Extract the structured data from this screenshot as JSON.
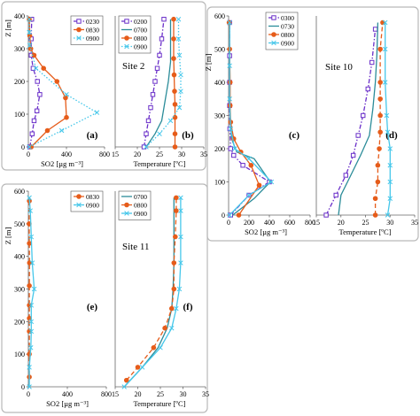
{
  "figure": {
    "site_labels": [
      "Site 2",
      "Site 10",
      "Site 11"
    ]
  },
  "series_colors": {
    "purple": "#6a2fc9",
    "orange": "#e65c1a",
    "teal": "#2b8c99",
    "cyan": "#45c7ea"
  },
  "chart_data": [
    {
      "type": "line",
      "panel_label": "(a)",
      "xlabel": "SO2 [µg m⁻³]",
      "ylabel": "Z [m]",
      "xlim": [
        0,
        800
      ],
      "xticks": [
        0,
        400,
        800
      ],
      "ylim": [
        0,
        400
      ],
      "yticks": [
        0,
        100,
        200,
        300,
        400
      ],
      "legend": "top-right",
      "series": [
        {
          "name": "0230",
          "color": "purple",
          "style": "dashdot",
          "marker": "square",
          "x": [
            15,
            40,
            60,
            90,
            120,
            95,
            50,
            30,
            30,
            35
          ],
          "y": [
            0,
            40,
            80,
            110,
            160,
            200,
            240,
            280,
            330,
            390
          ]
        },
        {
          "name": "0830",
          "color": "orange",
          "style": "solid",
          "marker": "circle",
          "x": [
            30,
            200,
            400,
            390,
            300,
            160,
            60,
            25,
            15,
            10
          ],
          "y": [
            0,
            50,
            90,
            150,
            200,
            240,
            280,
            300,
            340,
            390
          ]
        },
        {
          "name": "0900",
          "color": "cyan",
          "style": "dotted",
          "marker": "cross",
          "x": [
            10,
            350,
            720,
            400,
            80,
            15,
            10,
            8
          ],
          "y": [
            0,
            50,
            105,
            160,
            240,
            310,
            350,
            390
          ]
        }
      ]
    },
    {
      "type": "line",
      "panel_label": "(b)",
      "xlabel": "Temperature [ºC]",
      "ylabel": "",
      "xlim": [
        15,
        35
      ],
      "xticks": [
        15,
        20,
        25,
        30,
        35
      ],
      "ylim": [
        0,
        400
      ],
      "legend": "top-left",
      "series": [
        {
          "name": "0200",
          "color": "purple",
          "style": "dashdot",
          "marker": "square",
          "x": [
            21.5,
            22,
            22.5,
            23,
            23.5,
            24,
            24.5,
            25,
            25.5,
            26
          ],
          "y": [
            0,
            40,
            80,
            120,
            160,
            200,
            240,
            280,
            330,
            390
          ]
        },
        {
          "name": "0700",
          "color": "teal",
          "style": "solid",
          "marker": "none",
          "x": [
            22,
            24,
            25.5,
            26,
            26.5,
            27,
            27.5,
            27.5,
            27.5
          ],
          "y": [
            0,
            40,
            80,
            120,
            160,
            200,
            260,
            320,
            390
          ]
        },
        {
          "name": "0800",
          "color": "orange",
          "style": "solid",
          "marker": "circle",
          "x": [
            28.5,
            28.5,
            28.5,
            28.5,
            28.4,
            28.3,
            28.2,
            28.2,
            28.2
          ],
          "y": [
            0,
            40,
            90,
            130,
            170,
            220,
            270,
            330,
            390
          ]
        },
        {
          "name": "0900",
          "color": "cyan",
          "style": "dotted",
          "marker": "cross",
          "x": [
            22,
            25,
            27.5,
            29.5,
            29.8,
            29.8,
            29.5,
            29.3,
            29.3
          ],
          "y": [
            0,
            40,
            80,
            120,
            170,
            220,
            280,
            330,
            390
          ]
        }
      ]
    },
    {
      "type": "line",
      "panel_label": "(c)",
      "xlabel": "SO2 [µg m⁻³]",
      "ylabel": "Z [m]",
      "xlim": [
        0,
        800
      ],
      "xticks": [
        0,
        200,
        400,
        600,
        800
      ],
      "ylim": [
        0,
        600
      ],
      "yticks": [
        0,
        100,
        200,
        300,
        400,
        500,
        600
      ],
      "legend": "top-right",
      "series": [
        {
          "name": "0300",
          "color": "purple",
          "style": "dashdot",
          "marker": "square",
          "x": [
            20,
            200,
            400,
            140,
            50,
            20,
            12,
            10,
            10,
            10,
            10
          ],
          "y": [
            0,
            60,
            100,
            150,
            180,
            200,
            260,
            330,
            400,
            480,
            580
          ]
        },
        {
          "name": "0730",
          "color": "teal",
          "style": "solid",
          "marker": "none",
          "x": [
            40,
            250,
            410,
            250,
            80,
            30,
            15,
            10,
            10,
            10
          ],
          "y": [
            0,
            50,
            100,
            170,
            190,
            230,
            300,
            400,
            500,
            580
          ]
        },
        {
          "name": "0800",
          "color": "orange",
          "style": "solid",
          "marker": "circle",
          "x": [
            100,
            300,
            220,
            120,
            50,
            20,
            15,
            15,
            10,
            5
          ],
          "y": [
            0,
            90,
            150,
            190,
            230,
            280,
            330,
            400,
            500,
            580
          ]
        },
        {
          "name": "0900",
          "color": "cyan",
          "style": "solid",
          "marker": "cross",
          "x": [
            10,
            200,
            420,
            200,
            60,
            20,
            10,
            10,
            10
          ],
          "y": [
            0,
            60,
            100,
            170,
            200,
            260,
            350,
            450,
            580
          ]
        }
      ]
    },
    {
      "type": "line",
      "panel_label": "(d)",
      "xlabel": "Temperature [ºC]",
      "ylabel": "",
      "xlim": [
        15,
        35
      ],
      "xticks": [
        15,
        20,
        25,
        30,
        35
      ],
      "ylim": [
        0,
        600
      ],
      "legend": "none",
      "series": [
        {
          "name": "0300",
          "color": "purple",
          "style": "dashdot",
          "marker": "square",
          "x": [
            17,
            19,
            21,
            22.5,
            23.5,
            24.5,
            25.5,
            26.3,
            27
          ],
          "y": [
            0,
            60,
            120,
            180,
            240,
            300,
            380,
            460,
            560
          ]
        },
        {
          "name": "0700",
          "color": "teal",
          "style": "solid",
          "marker": "none",
          "x": [
            19.5,
            20,
            22,
            24,
            25.8,
            26.5,
            27,
            27.3,
            27.5
          ],
          "y": [
            0,
            60,
            120,
            180,
            240,
            320,
            400,
            480,
            580
          ]
        },
        {
          "name": "0800",
          "color": "orange",
          "style": "dashed",
          "marker": "circle",
          "x": [
            27,
            27,
            27.5,
            27.5,
            27.8,
            28,
            28,
            28,
            28,
            28,
            28.5
          ],
          "y": [
            0,
            50,
            100,
            150,
            200,
            250,
            300,
            350,
            400,
            500,
            580
          ]
        },
        {
          "name": "0900",
          "color": "cyan",
          "style": "solid",
          "marker": "cross",
          "x": [
            29.5,
            30,
            30,
            30,
            30,
            29.5,
            29.3,
            29,
            29,
            29
          ],
          "y": [
            0,
            50,
            100,
            150,
            200,
            250,
            300,
            400,
            500,
            580
          ]
        }
      ]
    },
    {
      "type": "line",
      "panel_label": "(e)",
      "xlabel": "SO2 [µg m⁻³]",
      "ylabel": "Z [m]",
      "xlim": [
        0,
        800
      ],
      "xticks": [
        0,
        400,
        800
      ],
      "ylim": [
        0,
        600
      ],
      "yticks": [
        0,
        100,
        200,
        300,
        400,
        500,
        600
      ],
      "legend": "top-right",
      "series": [
        {
          "name": "0830",
          "color": "orange",
          "style": "dashed",
          "marker": "circle",
          "x": [
            10,
            8,
            10,
            12,
            10,
            10,
            10,
            10,
            10,
            10
          ],
          "y": [
            570,
            500,
            440,
            380,
            310,
            250,
            210,
            170,
            100,
            30
          ]
        },
        {
          "name": "0900",
          "color": "cyan",
          "style": "solid",
          "marker": "cross",
          "x": [
            10,
            10,
            25,
            30,
            30,
            30,
            60,
            40,
            30,
            20,
            10
          ],
          "y": [
            0,
            60,
            120,
            170,
            200,
            250,
            300,
            380,
            460,
            540,
            580
          ]
        }
      ]
    },
    {
      "type": "line",
      "panel_label": "(f)",
      "xlabel": "Temperature [ºC]",
      "ylabel": "",
      "xlim": [
        15,
        35
      ],
      "xticks": [
        15,
        20,
        25,
        30,
        35
      ],
      "ylim": [
        0,
        600
      ],
      "legend": "top-left",
      "series": [
        {
          "name": "0700",
          "color": "teal",
          "style": "solid",
          "marker": "none",
          "x": [
            17,
            21,
            24.5,
            26.5,
            27.5,
            27.8,
            28,
            28,
            28,
            28
          ],
          "y": [
            0,
            60,
            120,
            180,
            240,
            300,
            380,
            460,
            540,
            580
          ]
        },
        {
          "name": "0800",
          "color": "orange",
          "style": "dashed",
          "marker": "circle",
          "x": [
            17.5,
            20,
            23.5,
            26,
            27.5,
            28,
            28,
            28.3,
            28.5,
            28.5
          ],
          "y": [
            20,
            60,
            120,
            180,
            240,
            300,
            380,
            460,
            540,
            580
          ]
        },
        {
          "name": "0900",
          "color": "cyan",
          "style": "solid",
          "marker": "cross",
          "x": [
            17,
            21,
            25,
            27.5,
            28.5,
            29.2,
            29.5,
            29.5,
            29.5,
            29.5
          ],
          "y": [
            0,
            60,
            120,
            180,
            240,
            300,
            380,
            460,
            540,
            580
          ]
        }
      ]
    }
  ]
}
